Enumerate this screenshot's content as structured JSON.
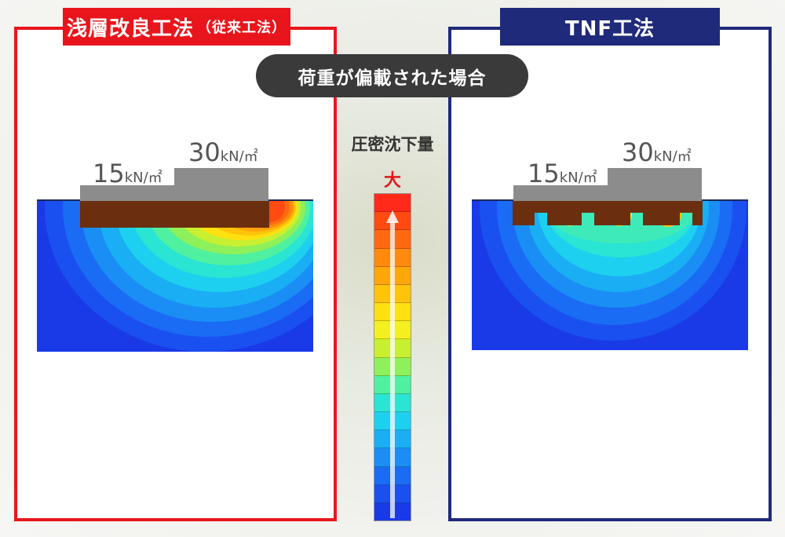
{
  "left_panel": {
    "title_main": "浅層改良工法",
    "title_sub": "（従来工法）",
    "load_low": "15",
    "load_high": "30",
    "unit": "kN/㎡"
  },
  "right_panel": {
    "title": "TNF工法",
    "load_low": "15",
    "load_high": "30",
    "unit": "kN/㎡"
  },
  "banner": "荷重が偏載された場合",
  "legend": {
    "title": "圧密沈下量",
    "max_label": "大",
    "colors": [
      "#ff2a1a",
      "#ff4a12",
      "#ff6a10",
      "#ff8a0c",
      "#ffa60a",
      "#ffc40a",
      "#ffe010",
      "#f4f020",
      "#c8f030",
      "#8ef05a",
      "#4ff0a0",
      "#2ae4d4",
      "#1ed0f0",
      "#1aaef4",
      "#1a8ef4",
      "#1a6cf4",
      "#1a50f0",
      "#1a3ae8"
    ]
  },
  "colors": {
    "conventional_accent": "#e8161c",
    "tnf_accent": "#1f2a7a",
    "load_block": "#8c8c8c",
    "slab": "#6b2f10"
  }
}
